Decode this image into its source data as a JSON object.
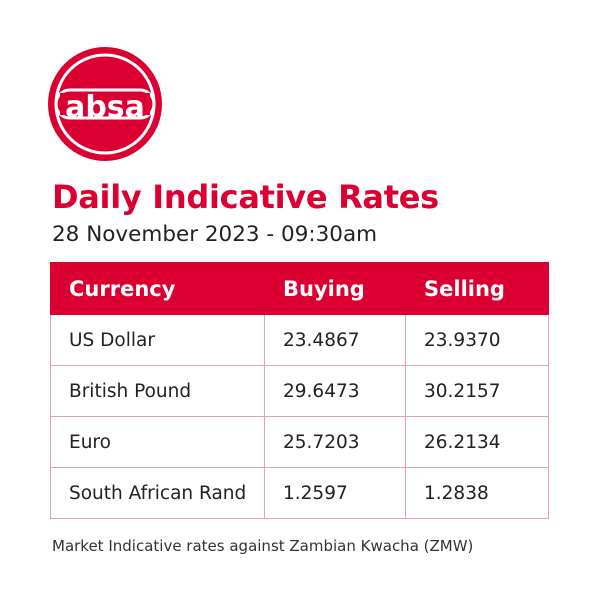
{
  "brand": {
    "logo_text": "absa",
    "color": "#dc0032"
  },
  "header": {
    "title": "Daily Indicative Rates",
    "subtitle": "28 November 2023 - 09:30am"
  },
  "table": {
    "columns": [
      "Currency",
      "Buying",
      "Selling"
    ],
    "rows": [
      {
        "currency": "US Dollar",
        "buying": "23.4867",
        "selling": "23.9370"
      },
      {
        "currency": "British Pound",
        "buying": "29.6473",
        "selling": "30.2157"
      },
      {
        "currency": "Euro",
        "buying": "25.7203",
        "selling": "26.2134"
      },
      {
        "currency": "South African Rand",
        "buying": "1.2597",
        "selling": "1.2838"
      }
    ]
  },
  "footnote": "Market Indicative rates against Zambian Kwacha (ZMW)"
}
